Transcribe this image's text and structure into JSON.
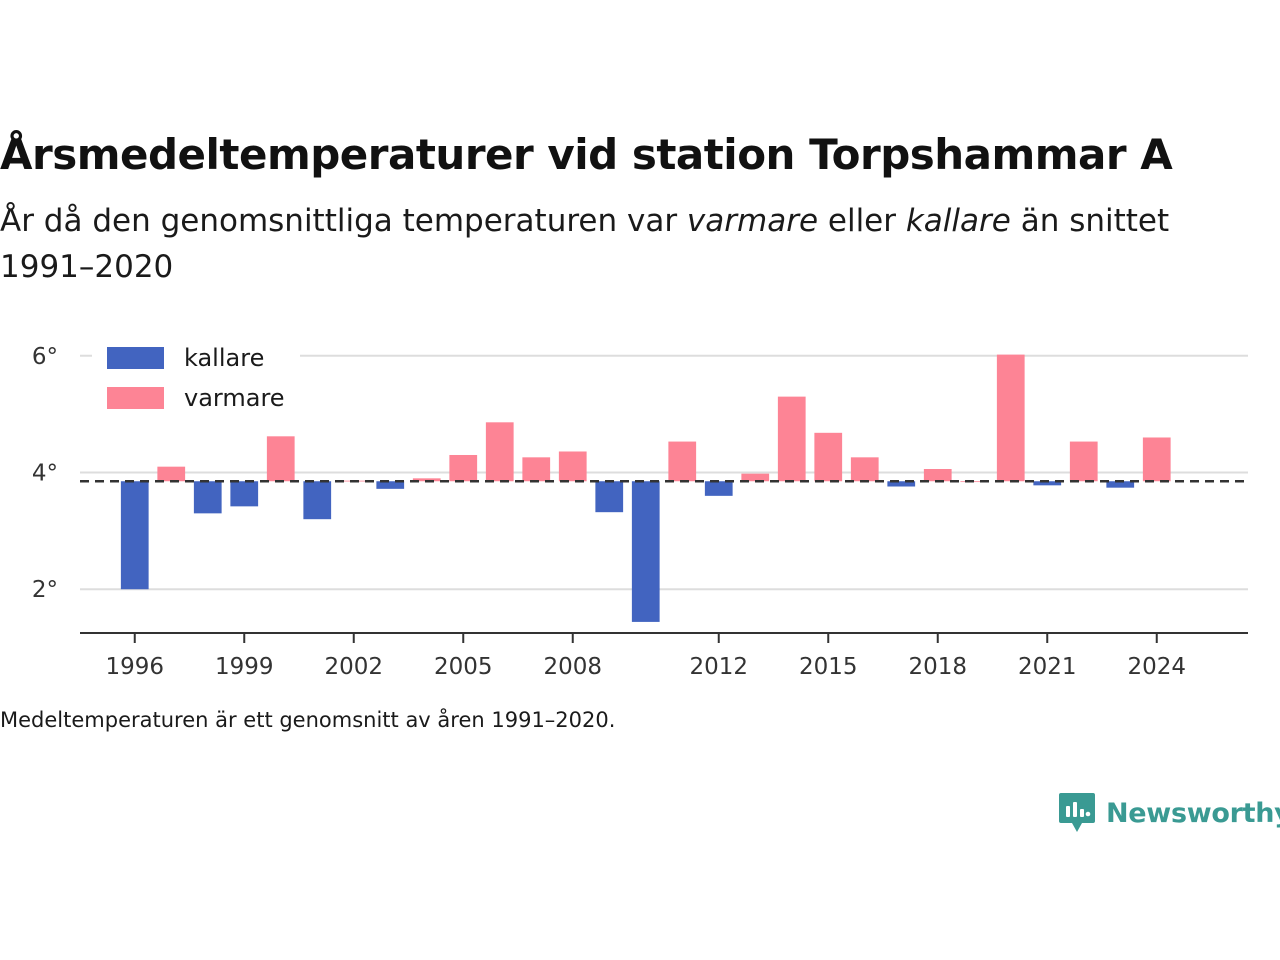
{
  "title": "Årsmedeltemperaturer vid station Torpshammar A",
  "subtitle": {
    "part1": "År då den genomsnittliga temperaturen var ",
    "warm_word": "varmare",
    "part2": " eller ",
    "cold_word": "kallare",
    "part3": " än snittet 1991–2020"
  },
  "note": "Medeltemperaturen är ett genomsnitt av åren 1991–2020.",
  "brand": {
    "name": "Newsworthy",
    "color": "#3a9a93"
  },
  "chart_data": {
    "type": "bar",
    "baseline": 3.85,
    "ylim": [
      1.25,
      6.75
    ],
    "yticks": [
      2,
      4,
      6
    ],
    "ytick_labels": [
      "2°",
      "4°",
      "6°"
    ],
    "xlim": [
      1994.5,
      2026.5
    ],
    "xticks": [
      1996,
      1999,
      2002,
      2005,
      2008,
      2012,
      2015,
      2018,
      2021,
      2024
    ],
    "xtick_labels": [
      "1996",
      "1999",
      "2002",
      "2005",
      "2008",
      "2012",
      "2015",
      "2018",
      "2021",
      "2024"
    ],
    "grid": true,
    "legend_position": "top-left",
    "colors": {
      "kallare": "#4264c0",
      "varmare": "#fd8495",
      "grid": "#dddddd",
      "baseline": "#333333",
      "axis": "#333333"
    },
    "legend": [
      {
        "name": "kallare",
        "color": "#4264c0"
      },
      {
        "name": "varmare",
        "color": "#fd8495"
      }
    ],
    "years": [
      1996,
      1997,
      1998,
      1999,
      2000,
      2001,
      2002,
      2003,
      2004,
      2005,
      2006,
      2007,
      2008,
      2009,
      2010,
      2011,
      2012,
      2013,
      2014,
      2015,
      2016,
      2017,
      2018,
      2019,
      2020,
      2021,
      2022,
      2023,
      2024
    ],
    "values": [
      2.0,
      4.1,
      3.3,
      3.42,
      4.62,
      3.2,
      3.86,
      3.72,
      3.9,
      4.3,
      4.86,
      4.26,
      4.36,
      3.32,
      1.44,
      4.53,
      3.6,
      3.98,
      5.3,
      4.68,
      4.26,
      3.76,
      4.06,
      3.85,
      6.02,
      3.78,
      4.53,
      3.74,
      4.6
    ]
  }
}
